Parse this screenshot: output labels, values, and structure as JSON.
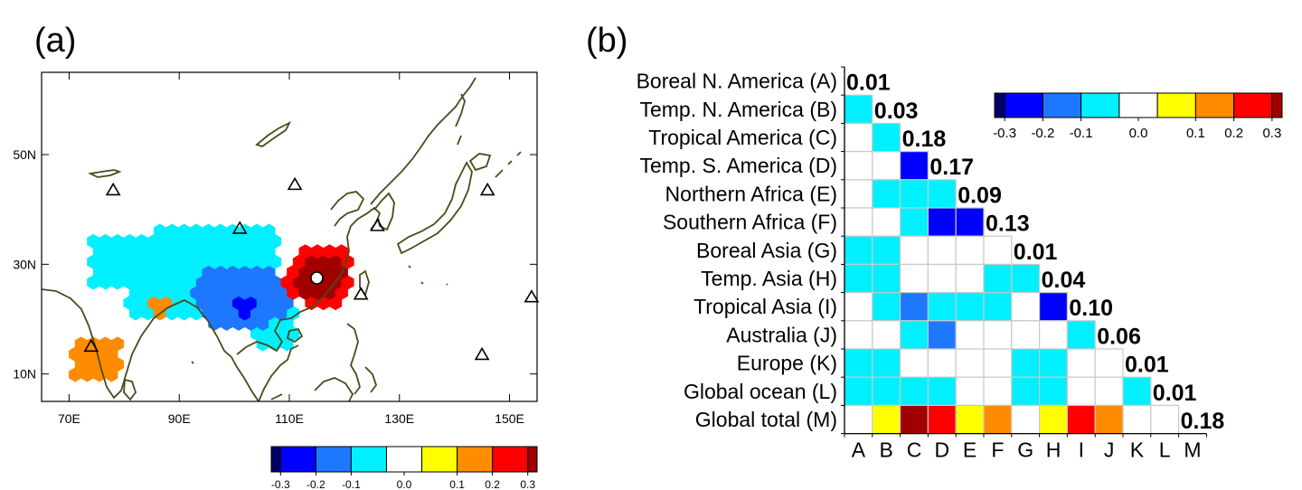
{
  "panels": {
    "a": "(a)",
    "b": "(b)"
  },
  "colorbar": {
    "colors": [
      "#000066",
      "#0000ff",
      "#1e78ff",
      "#00f0ff",
      "#ffffff",
      "#ffff00",
      "#ff8c00",
      "#ff0000",
      "#a00000"
    ],
    "tick_labels": [
      "-0.3",
      "-0.2",
      "-0.1",
      "0.0",
      "0.1",
      "0.2",
      "0.3"
    ]
  },
  "chart_data": [
    {
      "type": "heatmap",
      "panel": "a",
      "x_ticks": [
        "70E",
        "90E",
        "110E",
        "130E",
        "150E"
      ],
      "x_tick_values": [
        70,
        90,
        110,
        130,
        150
      ],
      "y_ticks": [
        "10N",
        "30N",
        "50N"
      ],
      "y_tick_values": [
        10,
        30,
        50
      ],
      "xlim": [
        65,
        155
      ],
      "ylim": [
        5,
        65
      ],
      "region_values": [
        {
          "region": "southern Tibetan Plateau / north India",
          "level": -0.1
        },
        {
          "region": "Myanmar / Yunnan",
          "level": -0.2
        },
        {
          "region": "Yunnan core",
          "level": -0.3
        },
        {
          "region": "southern India",
          "level": 0.1
        },
        {
          "region": "southeast China",
          "level": 0.3
        },
        {
          "region": "southeast China rim",
          "level": 0.2
        }
      ],
      "stations": [
        [
          78,
          43.5
        ],
        [
          101,
          36.5
        ],
        [
          111,
          44.5
        ],
        [
          126,
          37
        ],
        [
          146,
          43.5
        ],
        [
          74,
          15
        ],
        [
          123,
          24.5
        ],
        [
          154,
          24
        ],
        [
          145,
          13.5
        ]
      ],
      "site": [
        115,
        27.5
      ]
    },
    {
      "type": "heatmap",
      "panel": "b",
      "rows": [
        "Boreal N. America (A)",
        "Temp. N. America (B)",
        "Tropical America (C)",
        "Temp. S. America (D)",
        "Northern Africa (E)",
        "Southern Africa (F)",
        "Boreal Asia (G)",
        "Temp. Asia (H)",
        "Tropical Asia (I)",
        "Australia (J)",
        "Europe (K)",
        "Global ocean (L)",
        "Global total (M)"
      ],
      "columns": [
        "A",
        "B",
        "C",
        "D",
        "E",
        "F",
        "G",
        "H",
        "I",
        "J",
        "K",
        "L",
        "M"
      ],
      "diagonal_labels": [
        "0.01",
        "0.03",
        "0.18",
        "0.17",
        "0.09",
        "0.13",
        "0.01",
        "0.04",
        "0.10",
        "0.06",
        "0.01",
        "0.01",
        "0.18"
      ],
      "values": [
        [
          null,
          null,
          null,
          null,
          null,
          null,
          null,
          null,
          null,
          null,
          null,
          null,
          null
        ],
        [
          -0.05,
          null,
          null,
          null,
          null,
          null,
          null,
          null,
          null,
          null,
          null,
          null,
          null
        ],
        [
          0,
          -0.05,
          null,
          null,
          null,
          null,
          null,
          null,
          null,
          null,
          null,
          null,
          null
        ],
        [
          0,
          0,
          -0.25,
          null,
          null,
          null,
          null,
          null,
          null,
          null,
          null,
          null,
          null
        ],
        [
          0,
          -0.05,
          -0.05,
          -0.05,
          null,
          null,
          null,
          null,
          null,
          null,
          null,
          null,
          null
        ],
        [
          0,
          0,
          -0.05,
          -0.25,
          -0.25,
          null,
          null,
          null,
          null,
          null,
          null,
          null,
          null
        ],
        [
          -0.05,
          -0.05,
          0,
          0,
          0,
          0,
          null,
          null,
          null,
          null,
          null,
          null,
          null
        ],
        [
          -0.05,
          -0.05,
          0,
          0,
          0,
          -0.05,
          -0.05,
          null,
          null,
          null,
          null,
          null,
          null
        ],
        [
          0,
          -0.05,
          -0.15,
          -0.05,
          -0.05,
          -0.05,
          0,
          -0.25,
          null,
          null,
          null,
          null,
          null
        ],
        [
          0,
          0,
          -0.05,
          -0.15,
          0,
          0,
          0,
          0,
          -0.05,
          null,
          null,
          null,
          null
        ],
        [
          -0.05,
          -0.05,
          0,
          0,
          0,
          0,
          -0.05,
          -0.05,
          0,
          0,
          null,
          null,
          null
        ],
        [
          -0.05,
          -0.05,
          -0.05,
          -0.05,
          0,
          0,
          -0.05,
          -0.05,
          0,
          0,
          -0.05,
          null,
          null
        ],
        [
          0,
          0.05,
          0.35,
          0.25,
          0.05,
          0.15,
          0,
          0.05,
          0.25,
          0.15,
          0,
          0,
          null
        ]
      ],
      "colorbar_range": [
        -0.3,
        0.3
      ]
    }
  ]
}
